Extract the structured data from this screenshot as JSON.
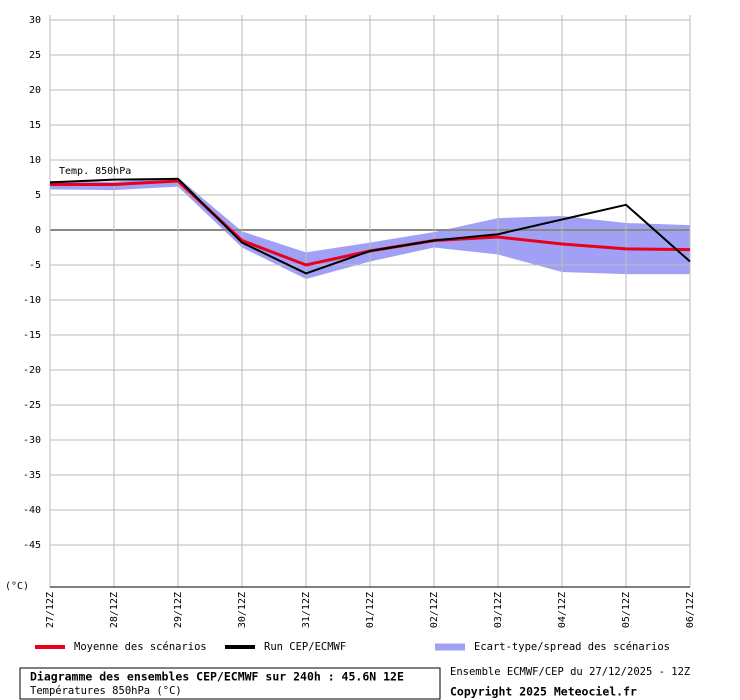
{
  "chart_data": {
    "type": "line",
    "title": "Diagramme des ensembles CEP/ECMWF sur 240h : 45.6N 12E",
    "subtitle": "Températures 850hPa (°C)",
    "source": "Ensemble ECMWF/CEP du 27/12/2025 - 12Z",
    "copyright": "Copyright 2025 Meteociel.fr",
    "annotation": "Temp. 850hPa",
    "y_unit": "(°C)",
    "categories": [
      "27/12Z",
      "28/12Z",
      "29/12Z",
      "30/12Z",
      "31/12Z",
      "01/12Z",
      "02/12Z",
      "03/12Z",
      "04/12Z",
      "05/12Z",
      "06/12Z"
    ],
    "ylim": [
      -51,
      30
    ],
    "yticks": [
      30,
      25,
      20,
      15,
      10,
      5,
      0,
      -5,
      -10,
      -15,
      -20,
      -25,
      -30,
      -35,
      -40,
      -45
    ],
    "grid": true,
    "band": {
      "name": "Ecart-type/spread des scénarios",
      "color": "#a0a0f5",
      "upper": [
        7,
        6.9,
        7.5,
        -0.2,
        -3.2,
        -1.8,
        -0.3,
        1.7,
        2,
        1,
        0.7
      ],
      "lower": [
        5.8,
        5.7,
        6.2,
        -2.5,
        -7,
        -4.5,
        -2.5,
        -3.5,
        -6,
        -6.3,
        -6.3
      ]
    },
    "series": [
      {
        "name": "Moyenne des scénarios",
        "color": "#e8001c",
        "values": [
          6.5,
          6.5,
          7,
          -1.5,
          -5,
          -3,
          -1.5,
          -1,
          -2,
          -2.7,
          -2.8
        ]
      },
      {
        "name": "Run CEP/ECMWF",
        "color": "#000000",
        "values": [
          6.8,
          7.2,
          7.3,
          -1.8,
          -6.2,
          -3,
          -1.5,
          -0.6,
          1.5,
          3.6,
          -4.5
        ]
      }
    ]
  }
}
